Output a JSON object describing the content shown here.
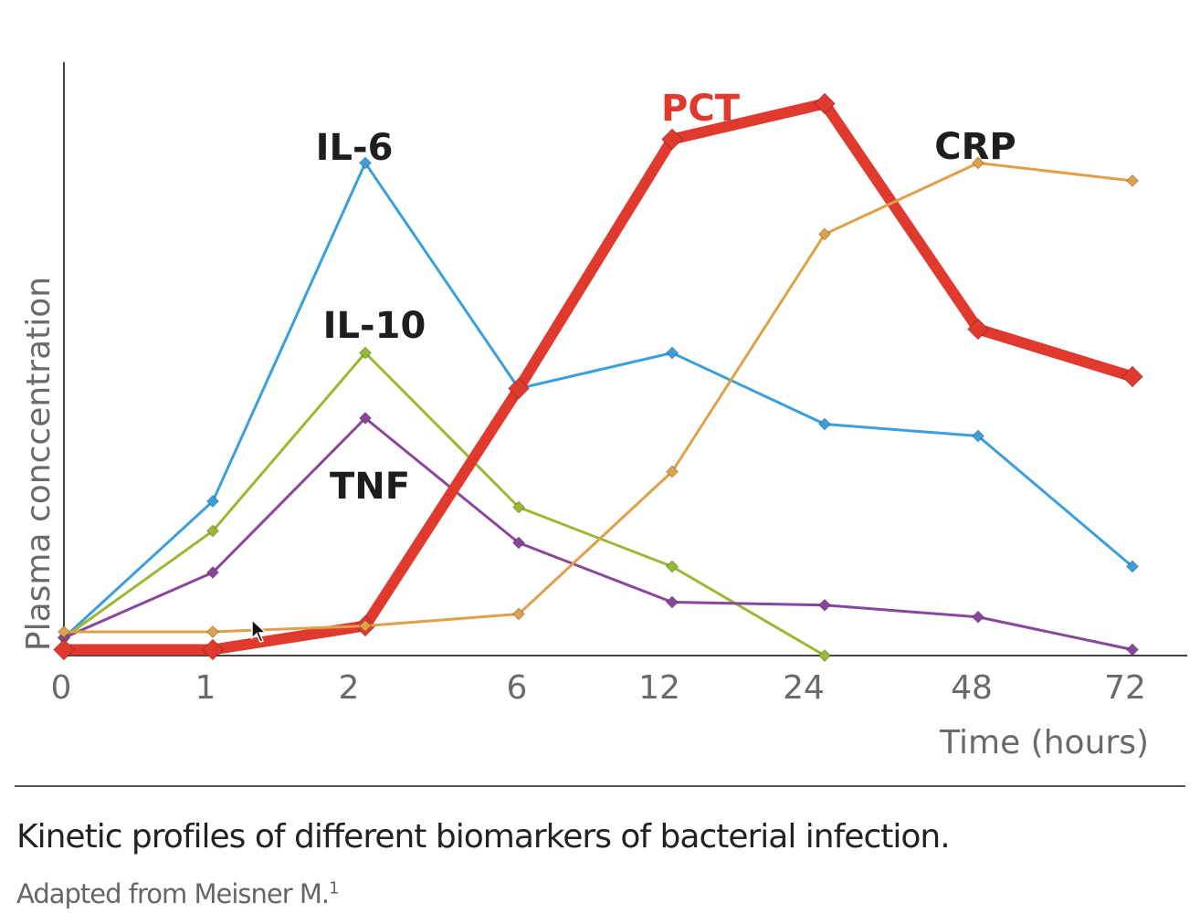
{
  "chart_data": {
    "type": "line",
    "categories": [
      "0",
      "1",
      "2",
      "6",
      "12",
      "24",
      "48",
      "72"
    ],
    "xlabel": "Time (hours)",
    "ylabel": "Plasma conccentration",
    "ylim": [
      0,
      100
    ],
    "grid": false,
    "series": [
      {
        "name": "IL-6",
        "color": "#3a9fdc",
        "values": [
          3,
          26,
          83,
          45,
          51,
          39,
          37,
          15
        ]
      },
      {
        "name": "IL-10",
        "color": "#9ab932",
        "values": [
          3,
          21,
          51,
          25,
          15,
          0,
          null,
          null
        ]
      },
      {
        "name": "TNF",
        "color": "#8a469a",
        "values": [
          3,
          14,
          40,
          19,
          9,
          8.5,
          6.5,
          1
        ]
      },
      {
        "name": "PCT",
        "color": "#e03a2e",
        "values": [
          1,
          1,
          5,
          45,
          87,
          93,
          55,
          47
        ]
      },
      {
        "name": "CRP",
        "color": "#e0a04a",
        "values": [
          4,
          4,
          5,
          7,
          31,
          71,
          83,
          80
        ]
      }
    ]
  },
  "caption": "Kinetic profiles of different biomarkers of bacterial infection.",
  "source": "Adapted from Meisner M.",
  "source_ref": "1"
}
